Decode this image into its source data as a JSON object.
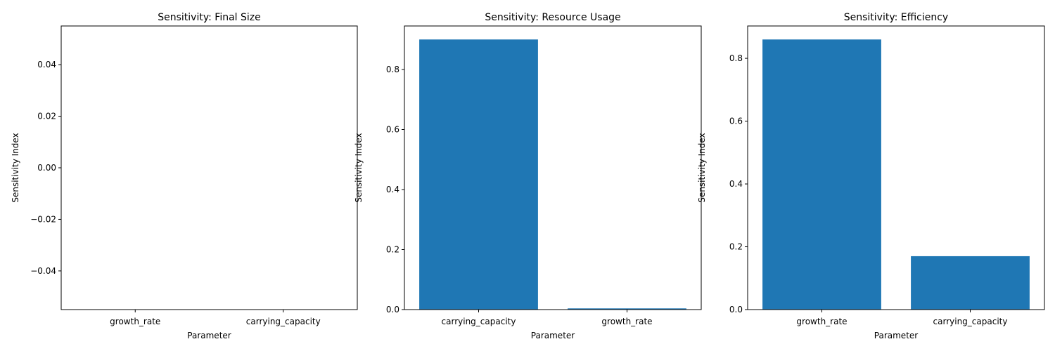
{
  "chart_data": [
    {
      "type": "bar",
      "title": "Sensitivity: Final Size",
      "xlabel": "Parameter",
      "ylabel": "Sensitivity Index",
      "categories": [
        "growth_rate",
        "carrying_capacity"
      ],
      "values": [
        0,
        0
      ],
      "ylim": [
        -0.055,
        0.055
      ],
      "yticks": [
        -0.04,
        -0.02,
        0.0,
        0.02,
        0.04
      ],
      "ytick_labels": [
        "−0.04",
        "−0.02",
        "0.00",
        "0.02",
        "0.04"
      ],
      "grid": false
    },
    {
      "type": "bar",
      "title": "Sensitivity: Resource Usage",
      "xlabel": "Parameter",
      "ylabel": "Sensitivity Index",
      "categories": [
        "carrying_capacity",
        "growth_rate"
      ],
      "values": [
        0.9,
        0.004
      ],
      "ylim": [
        0,
        0.945
      ],
      "yticks": [
        0.0,
        0.2,
        0.4,
        0.6,
        0.8
      ],
      "ytick_labels": [
        "0.0",
        "0.2",
        "0.4",
        "0.6",
        "0.8"
      ],
      "grid": false
    },
    {
      "type": "bar",
      "title": "Sensitivity: Efficiency",
      "xlabel": "Parameter",
      "ylabel": "Sensitivity Index",
      "categories": [
        "growth_rate",
        "carrying_capacity"
      ],
      "values": [
        0.86,
        0.17
      ],
      "ylim": [
        0,
        0.903
      ],
      "yticks": [
        0.0,
        0.2,
        0.4,
        0.6,
        0.8
      ],
      "ytick_labels": [
        "0.0",
        "0.2",
        "0.4",
        "0.6",
        "0.8"
      ],
      "grid": false
    }
  ],
  "colors": {
    "bar": "#1f77b4",
    "axis": "#000000",
    "background": "#ffffff"
  }
}
